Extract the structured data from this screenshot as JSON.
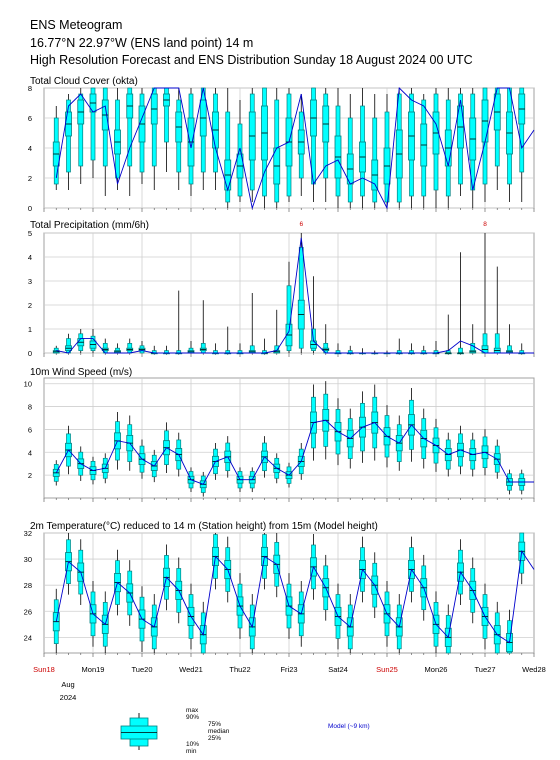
{
  "header": {
    "title": "ENS Meteogram",
    "location": "16.77°N 22.97°W (ENS land point) 14 m",
    "subtitle": "High Resolution Forecast and ENS Distribution Sunday 18 August 2024 00 UTC"
  },
  "x_axis": {
    "days": [
      {
        "label": "Sun18",
        "weekend": true
      },
      {
        "label": "Mon19",
        "weekend": false
      },
      {
        "label": "Tue20",
        "weekend": false
      },
      {
        "label": "Wed21",
        "weekend": false
      },
      {
        "label": "Thu22",
        "weekend": false
      },
      {
        "label": "Fri23",
        "weekend": false
      },
      {
        "label": "Sat24",
        "weekend": false
      },
      {
        "label": "Sun25",
        "weekend": true
      },
      {
        "label": "Mon26",
        "weekend": false
      },
      {
        "label": "Tue27",
        "weekend": false
      },
      {
        "label": "Wed28",
        "weekend": false
      }
    ],
    "month": "Aug",
    "year": "2024",
    "step_hours": 6
  },
  "colors": {
    "box_fill": "#00ffff",
    "box_edge": "#008080",
    "hres_line": "#0000cc",
    "weekend_label": "#cc0000",
    "grid": "#cfcfcf"
  },
  "legend": {
    "max": "max",
    "p90": "90%",
    "p75": "75%",
    "median": "median",
    "p25": "25%",
    "p10": "10%",
    "min": "min",
    "model_label": "Model (~9 km)"
  },
  "chart_data": [
    {
      "type": "box",
      "title": "Total Cloud Cover (okta)",
      "ylim": [
        0,
        8
      ],
      "yticks": [
        0,
        2,
        4,
        6,
        8
      ],
      "hres": [
        2.0,
        6.8,
        7.6,
        6.4,
        6.8,
        1.6,
        4.0,
        6.0,
        8.0,
        8.0,
        8.0,
        4.0,
        8.0,
        4.0,
        1.2,
        4.0,
        0.0,
        2.4,
        4.0,
        4.4,
        7.6,
        1.6,
        2.8,
        3.2,
        1.6,
        2.0,
        1.6,
        0.0,
        8.0,
        7.2,
        6.8,
        5.6,
        2.8,
        7.2,
        1.2,
        4.4,
        8.0,
        8.0,
        4.0,
        5.2,
        8.0,
        1.2,
        0.4,
        0.0
      ],
      "boxes": [
        [
          1.2,
          1.6,
          2.8,
          4.4,
          6.0,
          6.8
        ],
        [
          1.2,
          2.4,
          4.8,
          6.4,
          7.2,
          7.6
        ],
        [
          1.6,
          2.8,
          5.6,
          7.2,
          7.6,
          8.0
        ],
        [
          2.0,
          3.2,
          6.4,
          7.6,
          8.0,
          8.0
        ],
        [
          0.8,
          2.8,
          5.2,
          7.2,
          8.0,
          8.0
        ],
        [
          1.2,
          2.0,
          3.6,
          5.2,
          7.2,
          8.0
        ],
        [
          0.8,
          2.8,
          6.0,
          7.6,
          8.0,
          8.0
        ],
        [
          1.6,
          2.4,
          4.4,
          6.8,
          7.6,
          8.0
        ],
        [
          1.2,
          2.8,
          5.6,
          7.6,
          8.0,
          8.0
        ],
        [
          2.4,
          4.4,
          6.8,
          7.6,
          8.0,
          8.0
        ],
        [
          1.2,
          2.4,
          4.4,
          6.4,
          7.2,
          8.0
        ],
        [
          0.8,
          1.6,
          2.8,
          6.0,
          7.6,
          8.0
        ],
        [
          1.2,
          2.4,
          4.8,
          7.2,
          8.0,
          8.0
        ],
        [
          1.2,
          2.4,
          4.0,
          6.4,
          7.6,
          8.0
        ],
        [
          0.0,
          0.4,
          1.2,
          3.2,
          6.4,
          8.0
        ],
        [
          0.4,
          0.8,
          2.0,
          3.6,
          5.6,
          7.2
        ],
        [
          0.4,
          1.2,
          3.2,
          6.4,
          7.6,
          8.0
        ],
        [
          0.0,
          0.8,
          3.2,
          6.8,
          8.0,
          8.0
        ],
        [
          0.0,
          0.4,
          1.6,
          4.0,
          7.2,
          8.0
        ],
        [
          0.4,
          0.8,
          2.8,
          6.0,
          7.6,
          8.0
        ],
        [
          0.8,
          2.0,
          3.6,
          5.2,
          6.4,
          7.6
        ],
        [
          0.4,
          1.6,
          4.8,
          7.2,
          8.0,
          8.0
        ],
        [
          0.4,
          2.0,
          4.4,
          6.8,
          7.6,
          8.0
        ],
        [
          0.0,
          0.8,
          2.0,
          4.8,
          6.8,
          8.0
        ],
        [
          0.0,
          0.4,
          1.6,
          3.6,
          6.0,
          7.6
        ],
        [
          0.0,
          0.8,
          2.4,
          4.4,
          6.8,
          8.0
        ],
        [
          0.0,
          0.4,
          1.2,
          3.2,
          6.0,
          7.6
        ],
        [
          0.0,
          0.4,
          1.6,
          4.0,
          6.4,
          7.6
        ],
        [
          0.0,
          0.4,
          2.0,
          5.2,
          7.6,
          8.0
        ],
        [
          0.0,
          0.8,
          3.2,
          6.4,
          7.6,
          8.0
        ],
        [
          0.0,
          0.8,
          2.8,
          5.6,
          7.2,
          7.6
        ],
        [
          0.0,
          1.2,
          3.6,
          6.4,
          7.6,
          8.0
        ],
        [
          0.0,
          0.8,
          2.8,
          5.2,
          7.2,
          8.0
        ],
        [
          0.8,
          1.6,
          4.0,
          6.8,
          7.6,
          8.0
        ],
        [
          0.0,
          1.2,
          3.2,
          6.0,
          7.6,
          8.0
        ],
        [
          0.4,
          1.6,
          4.4,
          7.2,
          8.0,
          8.0
        ],
        [
          1.2,
          2.8,
          5.2,
          7.6,
          8.0,
          8.0
        ],
        [
          0.4,
          1.6,
          3.6,
          6.4,
          8.0,
          8.0
        ],
        [
          0.4,
          2.4,
          5.6,
          7.6,
          8.0,
          8.0
        ],
        [
          1.2,
          3.6,
          6.8,
          8.0,
          8.0,
          8.0
        ],
        [
          0.0,
          1.2,
          4.4,
          7.2,
          8.0,
          8.0
        ],
        [
          0.0,
          1.6,
          4.8,
          7.2,
          8.0,
          8.0
        ],
        [
          0.4,
          1.6,
          4.4,
          7.2,
          8.0,
          8.0
        ],
        [
          0.0,
          0.4,
          1.2,
          3.6,
          6.0,
          7.6
        ]
      ]
    },
    {
      "type": "box",
      "title": "Total Precipitation (mm/6h)",
      "ylim": [
        0,
        5
      ],
      "yticks": [
        0,
        1,
        2,
        3,
        4,
        5
      ],
      "offscale_labels": [
        {
          "index": 20,
          "text": "6"
        },
        {
          "index": 35,
          "text": "8"
        }
      ],
      "hres": [
        0.1,
        0.0,
        0.6,
        0.6,
        0.0,
        0.0,
        0.0,
        0.1,
        0.0,
        0.0,
        0.0,
        0.0,
        0.0,
        0.0,
        0.0,
        0.0,
        0.0,
        0.0,
        0.1,
        0.9,
        4.8,
        0.5,
        0.0,
        0.0,
        0.0,
        0.0,
        0.0,
        0.0,
        0.0,
        0.0,
        0.0,
        0.0,
        0.1,
        0.5,
        0.3,
        0.0,
        0.0,
        0.0,
        0.0,
        0.0,
        0.0,
        0.0,
        0.0,
        0.0
      ],
      "boxes": [
        [
          0.0,
          0.0,
          0.0,
          0.1,
          0.2,
          0.3
        ],
        [
          0.0,
          0.0,
          0.1,
          0.3,
          0.6,
          0.8
        ],
        [
          0.0,
          0.1,
          0.3,
          0.6,
          0.8,
          1.0
        ],
        [
          0.0,
          0.1,
          0.2,
          0.5,
          0.7,
          1.0
        ],
        [
          0.0,
          0.0,
          0.1,
          0.2,
          0.4,
          0.6
        ],
        [
          0.0,
          0.0,
          0.0,
          0.1,
          0.2,
          0.4
        ],
        [
          0.0,
          0.0,
          0.1,
          0.2,
          0.4,
          0.6
        ],
        [
          0.0,
          0.0,
          0.1,
          0.2,
          0.3,
          0.5
        ],
        [
          0.0,
          0.0,
          0.0,
          0.0,
          0.1,
          0.3
        ],
        [
          0.0,
          0.0,
          0.0,
          0.0,
          0.1,
          0.3
        ],
        [
          0.0,
          0.0,
          0.0,
          0.0,
          0.1,
          2.6
        ],
        [
          0.0,
          0.0,
          0.0,
          0.1,
          0.2,
          0.5
        ],
        [
          0.0,
          0.0,
          0.1,
          0.2,
          0.4,
          2.2
        ],
        [
          0.0,
          0.0,
          0.0,
          0.0,
          0.1,
          0.4
        ],
        [
          0.0,
          0.0,
          0.0,
          0.0,
          0.1,
          1.1
        ],
        [
          0.0,
          0.0,
          0.0,
          0.0,
          0.1,
          0.4
        ],
        [
          0.0,
          0.0,
          0.0,
          0.1,
          0.3,
          2.5
        ],
        [
          0.0,
          0.0,
          0.0,
          0.0,
          0.1,
          0.6
        ],
        [
          0.0,
          0.0,
          0.0,
          0.1,
          0.3,
          1.8
        ],
        [
          0.0,
          0.1,
          0.3,
          1.2,
          2.8,
          3.8
        ],
        [
          0.0,
          0.2,
          1.0,
          2.2,
          4.4,
          5.0
        ],
        [
          0.0,
          0.1,
          0.2,
          0.5,
          1.0,
          3.2
        ],
        [
          0.0,
          0.0,
          0.1,
          0.2,
          0.4,
          1.2
        ],
        [
          0.0,
          0.0,
          0.0,
          0.0,
          0.1,
          0.4
        ],
        [
          0.0,
          0.0,
          0.0,
          0.0,
          0.1,
          0.3
        ],
        [
          0.0,
          0.0,
          0.0,
          0.0,
          0.0,
          0.2
        ],
        [
          0.0,
          0.0,
          0.0,
          0.0,
          0.0,
          0.1
        ],
        [
          0.0,
          0.0,
          0.0,
          0.0,
          0.0,
          0.1
        ],
        [
          0.0,
          0.0,
          0.0,
          0.0,
          0.1,
          0.6
        ],
        [
          0.0,
          0.0,
          0.0,
          0.0,
          0.1,
          0.4
        ],
        [
          0.0,
          0.0,
          0.0,
          0.0,
          0.1,
          0.3
        ],
        [
          0.0,
          0.0,
          0.0,
          0.0,
          0.1,
          0.5
        ],
        [
          0.0,
          0.0,
          0.0,
          0.0,
          0.1,
          1.6
        ],
        [
          0.0,
          0.0,
          0.0,
          0.0,
          0.2,
          4.2
        ],
        [
          0.0,
          0.0,
          0.0,
          0.1,
          0.4,
          1.2
        ],
        [
          0.0,
          0.0,
          0.0,
          0.3,
          0.8,
          5.0
        ],
        [
          0.0,
          0.0,
          0.0,
          0.2,
          0.8,
          3.6
        ],
        [
          0.0,
          0.0,
          0.0,
          0.1,
          0.3,
          1.2
        ],
        [
          0.0,
          0.0,
          0.0,
          0.0,
          0.1,
          0.4
        ],
        [
          0.0,
          0.0,
          0.0,
          0.1,
          0.3,
          1.2
        ],
        [
          0.0,
          0.0,
          0.0,
          0.2,
          0.7,
          2.6
        ],
        [
          0.0,
          0.0,
          0.0,
          0.0,
          0.1,
          0.4
        ],
        [
          0.0,
          0.0,
          0.0,
          0.0,
          0.1,
          0.3
        ],
        [
          0.0,
          0.0,
          0.0,
          0.0,
          0.1,
          0.2
        ]
      ]
    },
    {
      "type": "box",
      "title": "10m Wind Speed (m/s)",
      "ylim": [
        0,
        10.5
      ],
      "yticks": [
        2,
        4,
        6,
        8,
        10
      ],
      "hres": [
        2.2,
        4.2,
        3.0,
        2.4,
        2.6,
        5.0,
        4.8,
        3.4,
        2.8,
        4.4,
        3.8,
        1.6,
        1.2,
        3.2,
        3.6,
        1.6,
        1.6,
        3.6,
        2.6,
        2.0,
        3.2,
        6.6,
        6.8,
        5.8,
        5.2,
        6.2,
        6.6,
        5.4,
        4.8,
        6.4,
        5.2,
        4.6,
        3.8,
        4.2,
        3.8,
        4.0,
        3.4,
        1.4,
        1.4,
        1.4,
        2.4,
        1.4
      ]
    },
    {
      "type": "box",
      "title": "2m Temperature(°C) reduced to 14 m (Station height) from 15m (Model height)",
      "ylim": [
        22.8,
        32
      ],
      "yticks": [
        24,
        26,
        28,
        30,
        32
      ],
      "hres": [
        25.2,
        29.8,
        29.0,
        25.8,
        25.0,
        28.2,
        27.4,
        25.4,
        24.8,
        28.6,
        27.6,
        25.6,
        24.2,
        30.2,
        29.2,
        26.4,
        24.8,
        30.2,
        29.6,
        26.4,
        25.8,
        29.4,
        27.8,
        25.6,
        24.8,
        29.2,
        28.0,
        25.8,
        24.8,
        29.2,
        27.8,
        25.0,
        24.0,
        29.0,
        27.6,
        25.6,
        24.2,
        23.6,
        30.6,
        29.2,
        26.4
      ]
    }
  ]
}
